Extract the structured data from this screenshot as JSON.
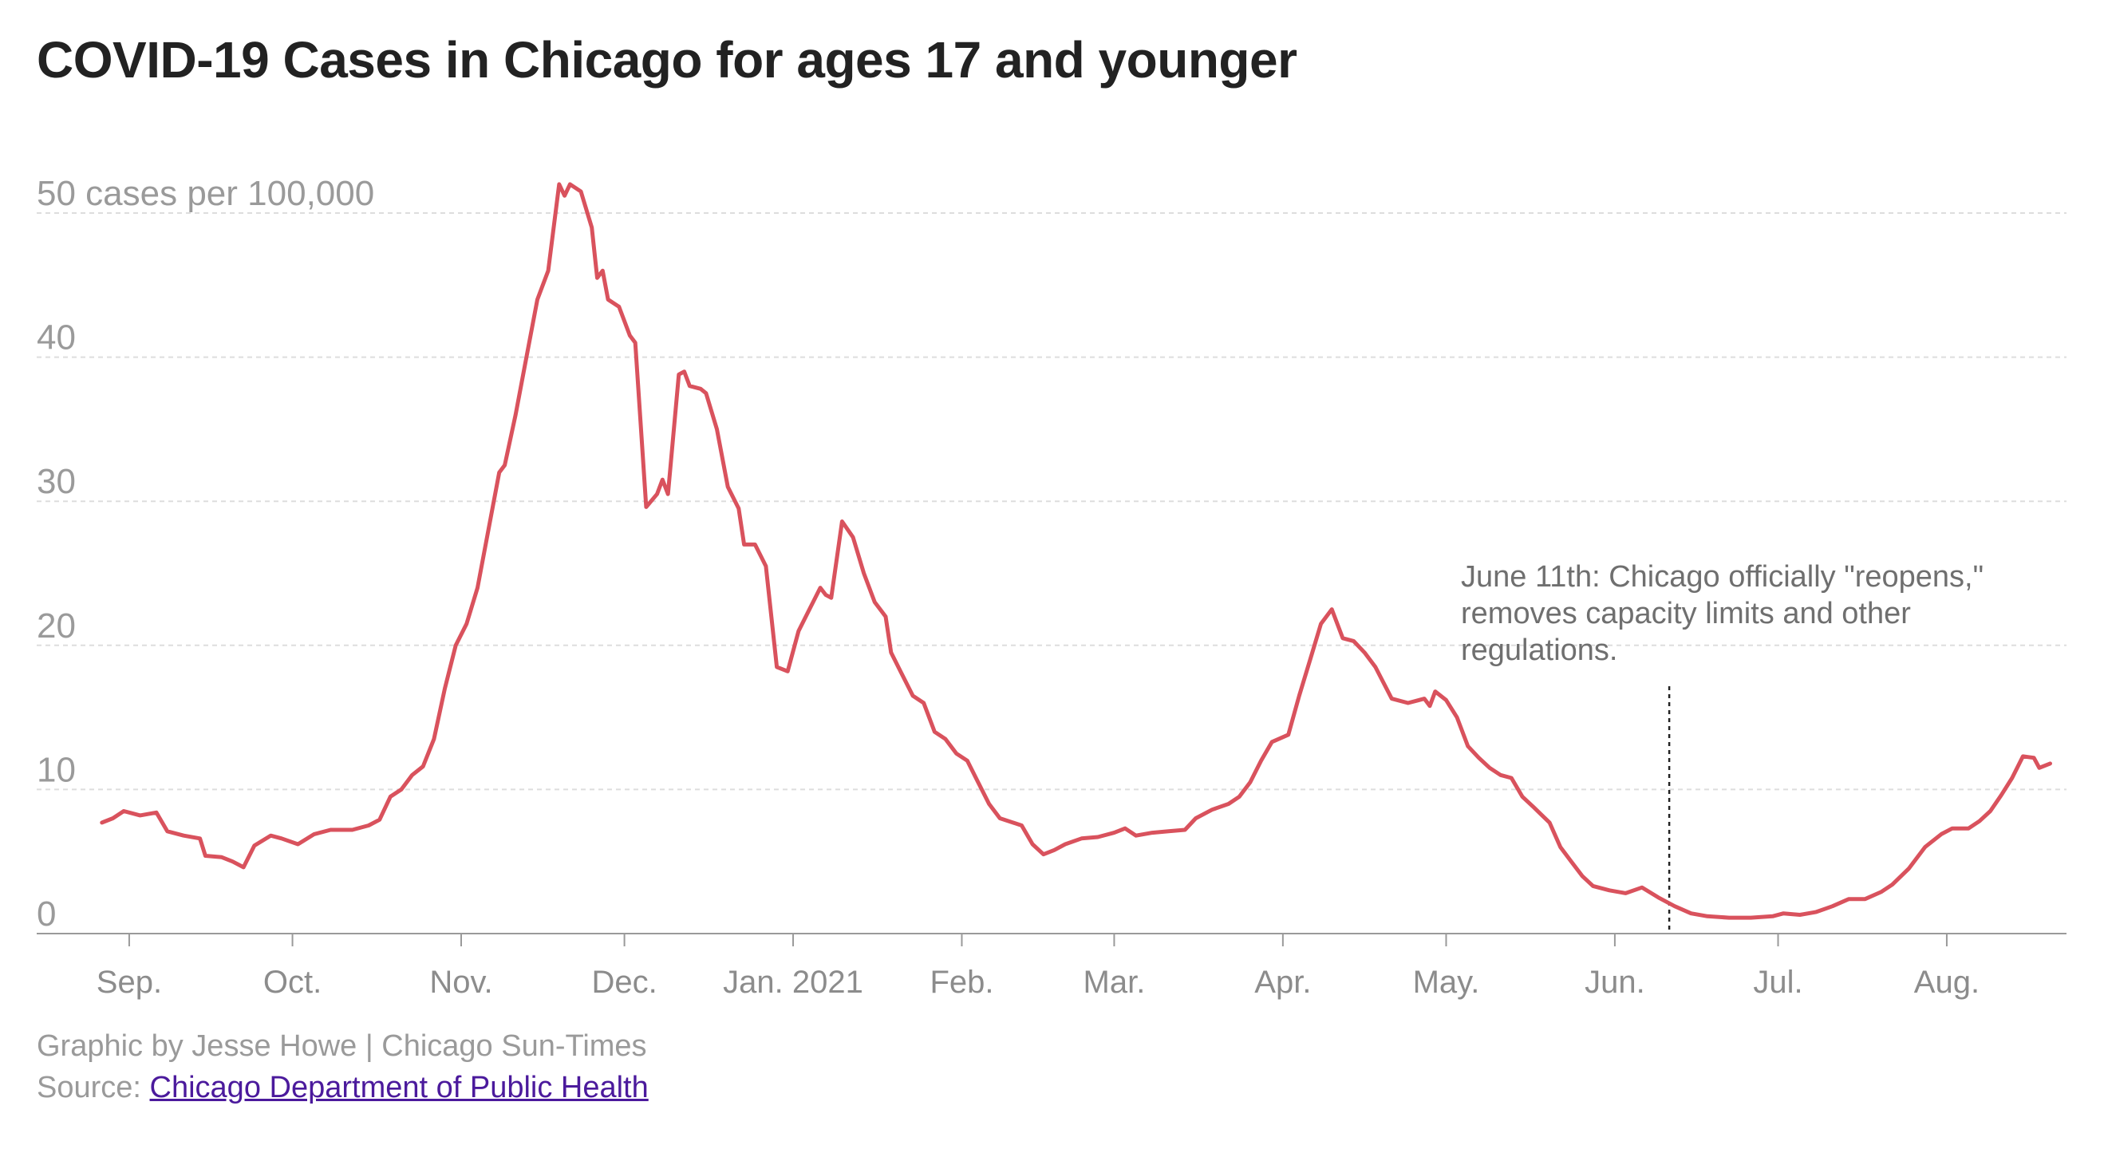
{
  "title": "COVID-19 Cases in Chicago for ages 17 and younger",
  "credit": "Graphic by Jesse Howe | Chicago Sun-Times",
  "source_label": "Source: ",
  "source_link_text": "Chicago Department of Public Health",
  "colors": {
    "line": "#d9525d",
    "grid": "#dddddd",
    "axis": "#9a9a9a",
    "annotation_line": "#222222"
  },
  "chart_data": {
    "type": "line",
    "title": "COVID-19 Cases in Chicago for ages 17 and younger",
    "ylabel": "50 cases per 100,000",
    "ylim": [
      0,
      50
    ],
    "grid": true,
    "yticks": [
      {
        "value": 50,
        "label": "50 cases per 100,000"
      },
      {
        "value": 40,
        "label": "40"
      },
      {
        "value": 30,
        "label": "30"
      },
      {
        "value": 20,
        "label": "20"
      },
      {
        "value": 10,
        "label": "10"
      },
      {
        "value": 0,
        "label": "0"
      }
    ],
    "xlim": [
      "2020-08-15",
      "2021-08-23"
    ],
    "xticks": [
      {
        "date": "2020-09-01",
        "label": "Sep."
      },
      {
        "date": "2020-10-01",
        "label": "Oct."
      },
      {
        "date": "2020-11-01",
        "label": "Nov."
      },
      {
        "date": "2020-12-01",
        "label": "Dec."
      },
      {
        "date": "2021-01-01",
        "label": "Jan. 2021"
      },
      {
        "date": "2021-02-01",
        "label": "Feb."
      },
      {
        "date": "2021-03-01",
        "label": "Mar."
      },
      {
        "date": "2021-04-01",
        "label": "Apr."
      },
      {
        "date": "2021-05-01",
        "label": "May."
      },
      {
        "date": "2021-06-01",
        "label": "Jun."
      },
      {
        "date": "2021-07-01",
        "label": "Jul."
      },
      {
        "date": "2021-08-01",
        "label": "Aug."
      }
    ],
    "annotation": {
      "date": "2021-06-11",
      "lines": [
        "June 11th: Chicago officially \"reopens,\"",
        "removes capacity limits and other",
        "regulations."
      ]
    },
    "series": [
      {
        "points": [
          [
            "2020-08-27",
            7.7
          ],
          [
            "2020-08-29",
            8.0
          ],
          [
            "2020-08-31",
            8.5
          ],
          [
            "2020-09-03",
            8.2
          ],
          [
            "2020-09-06",
            8.4
          ],
          [
            "2020-09-08",
            7.1
          ],
          [
            "2020-09-11",
            6.8
          ],
          [
            "2020-09-14",
            6.6
          ],
          [
            "2020-09-15",
            5.4
          ],
          [
            "2020-09-18",
            5.3
          ],
          [
            "2020-09-20",
            5.0
          ],
          [
            "2020-09-22",
            4.6
          ],
          [
            "2020-09-24",
            6.1
          ],
          [
            "2020-09-27",
            6.8
          ],
          [
            "2020-09-29",
            6.6
          ],
          [
            "2020-10-02",
            6.2
          ],
          [
            "2020-10-05",
            6.9
          ],
          [
            "2020-10-08",
            7.2
          ],
          [
            "2020-10-12",
            7.2
          ],
          [
            "2020-10-15",
            7.5
          ],
          [
            "2020-10-17",
            7.9
          ],
          [
            "2020-10-19",
            9.5
          ],
          [
            "2020-10-21",
            10.0
          ],
          [
            "2020-10-23",
            11.0
          ],
          [
            "2020-10-25",
            11.6
          ],
          [
            "2020-10-27",
            13.5
          ],
          [
            "2020-10-29",
            17.0
          ],
          [
            "2020-10-31",
            20.0
          ],
          [
            "2020-11-02",
            21.5
          ],
          [
            "2020-11-04",
            24.0
          ],
          [
            "2020-11-06",
            28.0
          ],
          [
            "2020-11-08",
            32.0
          ],
          [
            "2020-11-09",
            32.5
          ],
          [
            "2020-11-11",
            36.0
          ],
          [
            "2020-11-13",
            40.0
          ],
          [
            "2020-11-15",
            44.0
          ],
          [
            "2020-11-17",
            46.0
          ],
          [
            "2020-11-19",
            52.0
          ],
          [
            "2020-11-20",
            51.2
          ],
          [
            "2020-11-21",
            52.0
          ],
          [
            "2020-11-23",
            51.5
          ],
          [
            "2020-11-25",
            49.0
          ],
          [
            "2020-11-26",
            45.5
          ],
          [
            "2020-11-27",
            46.0
          ],
          [
            "2020-11-28",
            44.0
          ],
          [
            "2020-11-30",
            43.5
          ],
          [
            "2020-12-02",
            41.5
          ],
          [
            "2020-12-03",
            41.0
          ],
          [
            "2020-12-05",
            29.6
          ],
          [
            "2020-12-07",
            30.5
          ],
          [
            "2020-12-08",
            31.5
          ],
          [
            "2020-12-09",
            30.5
          ],
          [
            "2020-12-11",
            38.8
          ],
          [
            "2020-12-12",
            39.0
          ],
          [
            "2020-12-13",
            38.0
          ],
          [
            "2020-12-15",
            37.8
          ],
          [
            "2020-12-16",
            37.5
          ],
          [
            "2020-12-18",
            35.0
          ],
          [
            "2020-12-20",
            31.0
          ],
          [
            "2020-12-22",
            29.5
          ],
          [
            "2020-12-23",
            27.0
          ],
          [
            "2020-12-25",
            27.0
          ],
          [
            "2020-12-27",
            25.5
          ],
          [
            "2020-12-29",
            18.5
          ],
          [
            "2020-12-31",
            18.2
          ],
          [
            "2021-01-02",
            21.0
          ],
          [
            "2021-01-04",
            22.5
          ],
          [
            "2021-01-06",
            24.0
          ],
          [
            "2021-01-07",
            23.5
          ],
          [
            "2021-01-08",
            23.3
          ],
          [
            "2021-01-10",
            28.6
          ],
          [
            "2021-01-12",
            27.5
          ],
          [
            "2021-01-14",
            25.0
          ],
          [
            "2021-01-16",
            23.0
          ],
          [
            "2021-01-18",
            22.0
          ],
          [
            "2021-01-19",
            19.5
          ],
          [
            "2021-01-21",
            18.0
          ],
          [
            "2021-01-23",
            16.5
          ],
          [
            "2021-01-25",
            16.0
          ],
          [
            "2021-01-27",
            14.0
          ],
          [
            "2021-01-29",
            13.5
          ],
          [
            "2021-01-31",
            12.5
          ],
          [
            "2021-02-02",
            12.0
          ],
          [
            "2021-02-04",
            10.5
          ],
          [
            "2021-02-06",
            9.0
          ],
          [
            "2021-02-08",
            8.0
          ],
          [
            "2021-02-12",
            7.5
          ],
          [
            "2021-02-14",
            6.2
          ],
          [
            "2021-02-16",
            5.5
          ],
          [
            "2021-02-18",
            5.8
          ],
          [
            "2021-02-20",
            6.2
          ],
          [
            "2021-02-23",
            6.6
          ],
          [
            "2021-02-26",
            6.7
          ],
          [
            "2021-03-01",
            7.0
          ],
          [
            "2021-03-03",
            7.3
          ],
          [
            "2021-03-05",
            6.8
          ],
          [
            "2021-03-08",
            7.0
          ],
          [
            "2021-03-11",
            7.1
          ],
          [
            "2021-03-14",
            7.2
          ],
          [
            "2021-03-16",
            8.0
          ],
          [
            "2021-03-19",
            8.6
          ],
          [
            "2021-03-22",
            9.0
          ],
          [
            "2021-03-24",
            9.5
          ],
          [
            "2021-03-26",
            10.5
          ],
          [
            "2021-03-28",
            12.0
          ],
          [
            "2021-03-30",
            13.3
          ],
          [
            "2021-04-02",
            13.8
          ],
          [
            "2021-04-04",
            16.5
          ],
          [
            "2021-04-06",
            19.0
          ],
          [
            "2021-04-08",
            21.5
          ],
          [
            "2021-04-10",
            22.5
          ],
          [
            "2021-04-12",
            20.5
          ],
          [
            "2021-04-14",
            20.3
          ],
          [
            "2021-04-16",
            19.5
          ],
          [
            "2021-04-18",
            18.5
          ],
          [
            "2021-04-21",
            16.3
          ],
          [
            "2021-04-24",
            16.0
          ],
          [
            "2021-04-27",
            16.3
          ],
          [
            "2021-04-28",
            15.8
          ],
          [
            "2021-04-29",
            16.8
          ],
          [
            "2021-05-01",
            16.2
          ],
          [
            "2021-05-03",
            15.0
          ],
          [
            "2021-05-05",
            13.0
          ],
          [
            "2021-05-07",
            12.2
          ],
          [
            "2021-05-09",
            11.5
          ],
          [
            "2021-05-11",
            11.0
          ],
          [
            "2021-05-13",
            10.8
          ],
          [
            "2021-05-15",
            9.5
          ],
          [
            "2021-05-17",
            8.8
          ],
          [
            "2021-05-20",
            7.7
          ],
          [
            "2021-05-22",
            6.0
          ],
          [
            "2021-05-24",
            5.0
          ],
          [
            "2021-05-26",
            4.0
          ],
          [
            "2021-05-28",
            3.3
          ],
          [
            "2021-05-31",
            3.0
          ],
          [
            "2021-06-03",
            2.8
          ],
          [
            "2021-06-06",
            3.2
          ],
          [
            "2021-06-09",
            2.5
          ],
          [
            "2021-06-12",
            1.9
          ],
          [
            "2021-06-15",
            1.4
          ],
          [
            "2021-06-18",
            1.2
          ],
          [
            "2021-06-22",
            1.1
          ],
          [
            "2021-06-26",
            1.1
          ],
          [
            "2021-06-30",
            1.2
          ],
          [
            "2021-07-02",
            1.4
          ],
          [
            "2021-07-05",
            1.3
          ],
          [
            "2021-07-08",
            1.5
          ],
          [
            "2021-07-11",
            1.9
          ],
          [
            "2021-07-14",
            2.4
          ],
          [
            "2021-07-17",
            2.4
          ],
          [
            "2021-07-20",
            2.9
          ],
          [
            "2021-07-22",
            3.4
          ],
          [
            "2021-07-25",
            4.5
          ],
          [
            "2021-07-28",
            6.0
          ],
          [
            "2021-07-31",
            6.9
          ],
          [
            "2021-08-02",
            7.3
          ],
          [
            "2021-08-05",
            7.3
          ],
          [
            "2021-08-07",
            7.8
          ],
          [
            "2021-08-09",
            8.5
          ],
          [
            "2021-08-11",
            9.6
          ],
          [
            "2021-08-13",
            10.8
          ],
          [
            "2021-08-15",
            12.3
          ],
          [
            "2021-08-17",
            12.2
          ],
          [
            "2021-08-18",
            11.5
          ],
          [
            "2021-08-20",
            11.8
          ]
        ]
      }
    ]
  }
}
